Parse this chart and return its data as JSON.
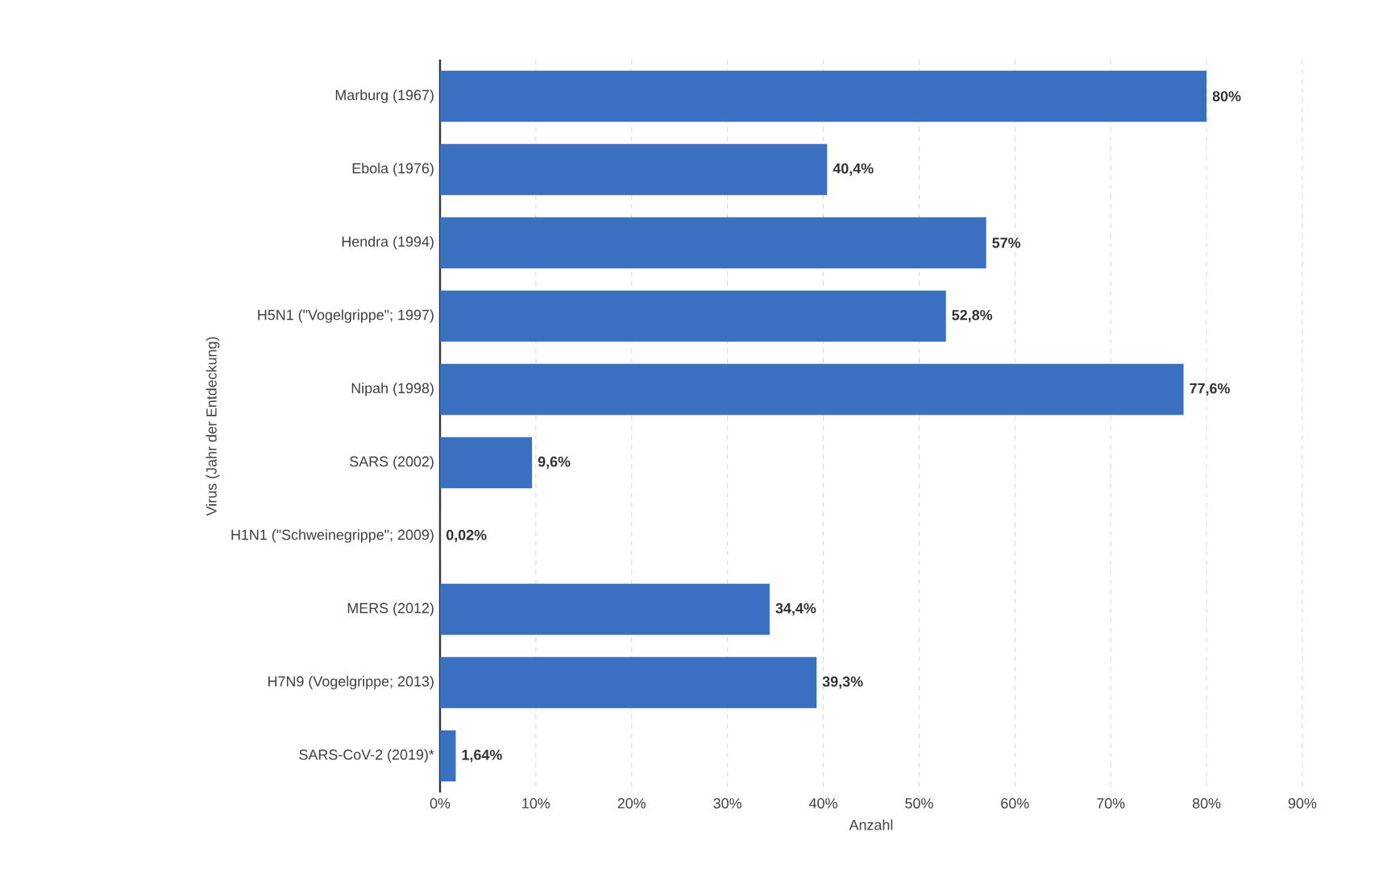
{
  "chart_data": {
    "type": "bar",
    "orientation": "horizontal",
    "xlabel": "Anzahl",
    "ylabel": "Virus (Jahr der Entdeckung)",
    "categories": [
      "Marburg (1967)",
      "Ebola (1976)",
      "Hendra (1994)",
      "H5N1 (\"Vogelgrippe\"; 1997)",
      "Nipah (1998)",
      "SARS (2002)",
      "H1N1 (\"Schweinegrippe\"; 2009)",
      "MERS (2012)",
      "H7N9 (Vogelgrippe; 2013)",
      "SARS-CoV-2 (2019)*"
    ],
    "values": [
      80,
      40.4,
      57,
      52.8,
      77.6,
      9.6,
      0.02,
      34.4,
      39.3,
      1.64
    ],
    "value_labels": [
      "80%",
      "40,4%",
      "57%",
      "52,8%",
      "77,6%",
      "9,6%",
      "0,02%",
      "34,4%",
      "39,3%",
      "1,64%"
    ],
    "color": "#3b6fbf",
    "xlim": [
      0,
      90
    ],
    "xticks": [
      {
        "value": 0,
        "label": "0%"
      },
      {
        "value": 10,
        "label": "10%"
      },
      {
        "value": 20,
        "label": "20%"
      },
      {
        "value": 30,
        "label": "30%"
      },
      {
        "value": 40,
        "label": "40%"
      },
      {
        "value": 50,
        "label": "50%"
      },
      {
        "value": 60,
        "label": "60%"
      },
      {
        "value": 70,
        "label": "70%"
      },
      {
        "value": 80,
        "label": "80%"
      },
      {
        "value": 90,
        "label": "90%"
      }
    ],
    "grid": "x"
  }
}
